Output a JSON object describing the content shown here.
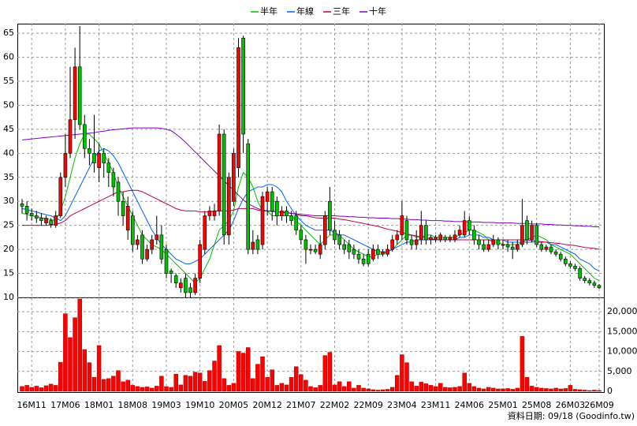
{
  "chart_data": {
    "type": "candlestick",
    "categories": [
      null,
      null,
      "16M11",
      null,
      null,
      null,
      null,
      null,
      null,
      "17M06",
      null,
      null,
      null,
      null,
      null,
      null,
      "18M01",
      null,
      null,
      null,
      null,
      null,
      null,
      "18M08",
      null,
      null,
      null,
      null,
      null,
      null,
      "19M03",
      null,
      null,
      null,
      null,
      null,
      null,
      "19M10",
      null,
      null,
      null,
      null,
      null,
      null,
      "20M05",
      null,
      null,
      null,
      null,
      null,
      null,
      "20M12",
      null,
      null,
      null,
      null,
      null,
      null,
      "21M07",
      null,
      null,
      null,
      null,
      null,
      null,
      "22M02",
      null,
      null,
      null,
      null,
      null,
      null,
      "22M09",
      null,
      null,
      null,
      null,
      null,
      null,
      "23M04",
      null,
      null,
      null,
      null,
      null,
      null,
      "23M11",
      null,
      null,
      null,
      null,
      null,
      null,
      "24M06",
      null,
      null,
      null,
      null,
      null,
      null,
      "25M01",
      null,
      null,
      null,
      null,
      null,
      null,
      "25M08",
      null,
      null,
      null,
      null,
      null,
      null,
      "26M03",
      null,
      null,
      null,
      null,
      null,
      "26M09"
    ],
    "open": [
      29.5,
      29,
      27.5,
      27,
      26.5,
      25.5,
      26,
      25,
      27,
      35,
      40,
      47,
      58,
      46,
      41,
      40,
      37,
      40,
      38,
      36,
      34,
      30,
      24,
      27,
      21,
      23,
      18,
      20,
      22,
      23,
      20,
      15.5,
      14.5,
      12,
      14,
      12,
      11,
      14,
      20,
      27,
      27,
      28,
      44,
      23,
      30,
      37,
      64,
      42,
      20,
      22,
      21,
      30,
      32,
      30,
      27,
      28,
      27,
      27,
      24,
      22,
      20,
      20,
      19,
      21,
      30,
      24,
      23,
      21,
      21,
      20,
      19,
      18,
      19,
      18,
      20,
      19,
      19,
      20,
      22,
      23,
      26,
      22,
      21,
      22,
      25,
      22,
      22,
      22,
      22.5,
      22,
      22,
      23,
      23,
      26,
      24,
      22,
      21,
      20,
      21,
      22,
      21,
      21,
      20.5,
      20,
      21,
      26,
      22,
      25,
      21,
      20,
      20.5,
      19.5,
      19,
      18,
      17,
      16.5,
      16,
      14,
      13.5,
      13,
      12.5
    ],
    "high": [
      30.5,
      30,
      28.5,
      28,
      27.5,
      27,
      26.5,
      28,
      36,
      44,
      58,
      62,
      66.5,
      48,
      43,
      48,
      42,
      41,
      39,
      37,
      35,
      32,
      31,
      28,
      23,
      24,
      21,
      23,
      27,
      25,
      21,
      16,
      15,
      14,
      15,
      13,
      15,
      22,
      28,
      29,
      29.5,
      46,
      45,
      36,
      41,
      64,
      64.5,
      43,
      24,
      23,
      32,
      33,
      33,
      31,
      29,
      29,
      28,
      28,
      25,
      23,
      21,
      21,
      23,
      28,
      33,
      26,
      24,
      22,
      22,
      21,
      20,
      19,
      20,
      21,
      21,
      20,
      21,
      23,
      24,
      30,
      27,
      23,
      24,
      28,
      26,
      23,
      23,
      23.5,
      23,
      23,
      24,
      25,
      28,
      27,
      25,
      23,
      22,
      22,
      23,
      22.5,
      22,
      22,
      21.5,
      22,
      30.5,
      27,
      26,
      25.5,
      21.5,
      21,
      21,
      20,
      19.5,
      18.5,
      17.5,
      17,
      16.5,
      14.5,
      14,
      13.5,
      12.8
    ],
    "low": [
      27.5,
      26,
      26,
      25.5,
      25,
      25,
      24.5,
      24.5,
      26.5,
      33,
      39,
      43,
      45,
      39,
      37.5,
      36,
      34,
      35,
      33,
      31,
      27,
      25,
      22,
      19.5,
      20,
      17,
      17.5,
      19,
      21,
      17,
      14,
      13,
      12,
      11,
      10,
      10,
      10.5,
      13,
      19,
      26,
      26,
      27,
      21,
      21,
      29,
      35,
      40,
      19,
      19,
      19,
      20,
      27,
      26,
      25,
      26,
      25.5,
      25,
      23,
      21,
      17,
      19,
      19,
      18,
      20,
      23,
      21,
      20,
      19,
      18,
      18,
      17,
      16.5,
      16.5,
      17.5,
      18,
      18.5,
      18.5,
      19.5,
      21,
      22,
      21,
      20,
      20,
      21,
      21,
      21,
      21.5,
      21.5,
      21.5,
      21.5,
      21.5,
      22.5,
      22.5,
      23,
      21,
      20,
      19.5,
      19.5,
      20.5,
      20,
      20,
      19.5,
      18,
      19.5,
      20.5,
      21,
      21.5,
      20.5,
      19.5,
      19.5,
      19,
      18.5,
      17.5,
      16.5,
      16,
      15.5,
      13.5,
      13,
      12.5,
      12,
      11.8
    ],
    "close": [
      29,
      27.5,
      27,
      26.5,
      26,
      26.5,
      25.2,
      27,
      35,
      40,
      47,
      58,
      46,
      41,
      40,
      38,
      40,
      38,
      36,
      33,
      30,
      27,
      29,
      21,
      22,
      18,
      20,
      22,
      23,
      18,
      15,
      15,
      13,
      13,
      11,
      11,
      14,
      21,
      27,
      28,
      28,
      44,
      23,
      35,
      40,
      62,
      44,
      20,
      21.5,
      20,
      31,
      32,
      28,
      27,
      28,
      27,
      26,
      24,
      22,
      20,
      20,
      19.5,
      21,
      27,
      24,
      22,
      21,
      20,
      19.5,
      19,
      18,
      17,
      17,
      20,
      19,
      19.5,
      20,
      22,
      23,
      27,
      22,
      21,
      22,
      25,
      22,
      22.5,
      22.5,
      23,
      22,
      22.5,
      23,
      24,
      26,
      24,
      22,
      21,
      20,
      21,
      22,
      21,
      21,
      20.5,
      20,
      21,
      25,
      22,
      25,
      21,
      20,
      20.5,
      19.5,
      19,
      18,
      17,
      16.5,
      16,
      14,
      13.5,
      13,
      12.5,
      12
    ],
    "up_color": "#ff0000",
    "down_color": "#00c000",
    "ylim": [
      10,
      67
    ],
    "yticks": [
      10,
      15,
      20,
      25,
      30,
      35,
      40,
      45,
      50,
      55,
      60,
      65
    ],
    "grid": true,
    "lines": [
      {
        "name": "半年",
        "color": "#00c000",
        "values": [
          27.5,
          27.3,
          27,
          26.8,
          26.6,
          26.4,
          26.2,
          26,
          28,
          31,
          35,
          39,
          42,
          44,
          44,
          43,
          42,
          40,
          38,
          36,
          33,
          31,
          29,
          27,
          25,
          23,
          22,
          21,
          20.5,
          20,
          19,
          18,
          17,
          16,
          15,
          14,
          13,
          14,
          16,
          18,
          21,
          24,
          25,
          26,
          28,
          33,
          36,
          35,
          33,
          30,
          28,
          28,
          27,
          27,
          27,
          27,
          27,
          26,
          25,
          24,
          23,
          22,
          21,
          22,
          23,
          23,
          23,
          22,
          21,
          20,
          19.5,
          19,
          18.5,
          18.5,
          19,
          19,
          19.5,
          20,
          21,
          22,
          23,
          23,
          22.5,
          22.5,
          23,
          23,
          22.5,
          22.5,
          22.5,
          22.5,
          22.5,
          23,
          23.5,
          24,
          24,
          23.5,
          23,
          22,
          21.5,
          21.5,
          21,
          21,
          21,
          21,
          21.5,
          22,
          22.5,
          23,
          22.5,
          22,
          21,
          20.5,
          20,
          19.5,
          19,
          18,
          17,
          16,
          15,
          14,
          13.5
        ]
      },
      {
        "name": "年線",
        "color": "#0060ff",
        "values": [
          28.5,
          28.3,
          28,
          27.8,
          27.5,
          27.2,
          27,
          26.5,
          26,
          27,
          29,
          31,
          33,
          35,
          37,
          39,
          40.5,
          41,
          40.5,
          39.5,
          38,
          36,
          34,
          32,
          30,
          28,
          26,
          24,
          22.5,
          21,
          20,
          19,
          18,
          17.5,
          17,
          17,
          17.5,
          18,
          19,
          20,
          21,
          22,
          23,
          24,
          26,
          28.5,
          30.5,
          32,
          32.5,
          33,
          33,
          33.5,
          33.5,
          33,
          32,
          30,
          28.5,
          27,
          26,
          25,
          24.5,
          24,
          24,
          24,
          24,
          23.5,
          23,
          23,
          22.5,
          22,
          21.5,
          21,
          20.5,
          20,
          19.5,
          19.5,
          19.5,
          20,
          20.5,
          21,
          21.5,
          21.5,
          22,
          22,
          22,
          22,
          22,
          22,
          22,
          22,
          22,
          22.5,
          22.5,
          23,
          23,
          23,
          22.5,
          22.5,
          22,
          22,
          22,
          21.5,
          21.5,
          21.5,
          21.5,
          21.5,
          21.5,
          21.5,
          21.5,
          21.5,
          21,
          21,
          20.5,
          20,
          19.5,
          19,
          18,
          17.5,
          17,
          16,
          15.5
        ]
      },
      {
        "name": "三年",
        "color": "#c00040",
        "values": [
          25,
          25,
          25,
          25,
          25,
          25,
          25.1,
          25.2,
          25.5,
          26,
          27,
          27.5,
          28,
          28.5,
          29,
          29.5,
          30,
          30.5,
          31,
          31.5,
          32,
          32,
          32.2,
          32.3,
          32.3,
          32,
          31.5,
          31,
          30.5,
          30,
          29.5,
          29,
          28.5,
          28.2,
          28,
          28,
          28,
          27.8,
          27.8,
          27.8,
          28,
          28,
          28,
          28,
          28.2,
          28.5,
          28.5,
          28.5,
          28.5,
          28.2,
          28,
          28,
          28,
          27.8,
          27.8,
          27.7,
          27.5,
          27.3,
          27,
          27,
          26.8,
          26.6,
          26.5,
          26.5,
          26.5,
          26.5,
          26.3,
          26.2,
          26,
          25.8,
          25.6,
          25.4,
          25.2,
          25,
          24.8,
          24.5,
          24.2,
          24,
          23.8,
          23.5,
          23.2,
          23,
          22.8,
          22.6,
          22.4,
          22.2,
          22,
          22,
          22,
          22,
          22,
          22,
          22,
          22,
          22,
          22,
          22,
          22,
          22,
          22,
          22,
          22,
          22,
          22,
          22,
          22,
          21.8,
          21.7,
          21.6,
          21.5,
          21.4,
          21.3,
          21.2,
          21,
          20.9,
          20.8,
          20.6,
          20.4,
          20.3,
          20.2,
          20
        ]
      },
      {
        "name": "十年",
        "color": "#8000c0",
        "values": [
          42.8,
          42.9,
          43,
          43.1,
          43.2,
          43.3,
          43.4,
          43.5,
          43.6,
          43.7,
          43.8,
          43.9,
          44,
          44.1,
          44.2,
          44.3,
          44.5,
          44.6,
          44.8,
          44.9,
          45,
          45.1,
          45.2,
          45.3,
          45.3,
          45.3,
          45.3,
          45.3,
          45.3,
          45.2,
          45,
          44.7,
          44,
          43.2,
          42.3,
          41.3,
          40.3,
          39.3,
          38.3,
          37.3,
          36.3,
          35.3,
          34.3,
          33.3,
          32.3,
          31.3,
          30.3,
          29.5,
          29,
          28.5,
          28.2,
          28,
          27.9,
          27.8,
          27.7,
          27.6,
          27.5,
          27.4,
          27.3,
          27.2,
          27.1,
          27,
          27,
          27,
          27,
          27,
          26.9,
          26.9,
          26.8,
          26.8,
          26.7,
          26.7,
          26.6,
          26.6,
          26.5,
          26.5,
          26.5,
          26.4,
          26.4,
          26.3,
          26.3,
          26.2,
          26.2,
          26.1,
          26.1,
          26,
          26,
          26,
          25.9,
          25.9,
          25.8,
          25.8,
          25.8,
          25.7,
          25.7,
          25.7,
          25.6,
          25.6,
          25.6,
          25.5,
          25.5,
          25.5,
          25.5,
          25.4,
          25.4,
          25.4,
          25.3,
          25.3,
          25.3,
          25.2,
          25.2,
          25.1,
          25.1,
          25,
          25,
          24.9,
          24.9,
          24.8,
          24.8,
          24.7,
          24.7
        ]
      }
    ],
    "volume": {
      "color": "#ff0000",
      "ylim": [
        0,
        23400
      ],
      "yticks": [
        0,
        {
          "value": 5000,
          "label": "5,000"
        },
        {
          "value": 10000,
          "label": "10,000"
        },
        {
          "value": 15000,
          "label": "15,000"
        },
        {
          "value": 20000,
          "label": "20,000"
        }
      ],
      "values": [
        1200,
        1500,
        1000,
        1300,
        900,
        1400,
        1800,
        1500,
        7300,
        19500,
        13500,
        18500,
        23200,
        10500,
        7200,
        3500,
        11500,
        3000,
        3200,
        3800,
        5200,
        2400,
        2800,
        1500,
        1200,
        1000,
        1100,
        800,
        1300,
        3800,
        1200,
        1000,
        4300,
        1600,
        4000,
        3800,
        4800,
        4600,
        2500,
        5200,
        7600,
        11500,
        3200,
        1500,
        2000,
        10000,
        9600,
        11000,
        3200,
        6800,
        8700,
        3500,
        5400,
        1500,
        2000,
        1600,
        3500,
        6200,
        4200,
        2800,
        1200,
        900,
        1500,
        9000,
        9800,
        1600,
        2400,
        1200,
        2400,
        800,
        1500,
        800,
        600,
        400,
        300,
        400,
        500,
        1000,
        4000,
        9200,
        7200,
        2400,
        1300,
        2300,
        1900,
        1500,
        1200,
        2000,
        1000,
        900,
        1000,
        1200,
        4600,
        2000,
        1200,
        800,
        600,
        1000,
        800,
        600,
        600,
        700,
        500,
        800,
        13800,
        3500,
        1300,
        1000,
        800,
        700,
        600,
        800,
        600,
        700,
        1500,
        500,
        400,
        300,
        200,
        300,
        200
      ]
    },
    "source": "資料日期: 09/18 (Goodinfo.tw)"
  }
}
